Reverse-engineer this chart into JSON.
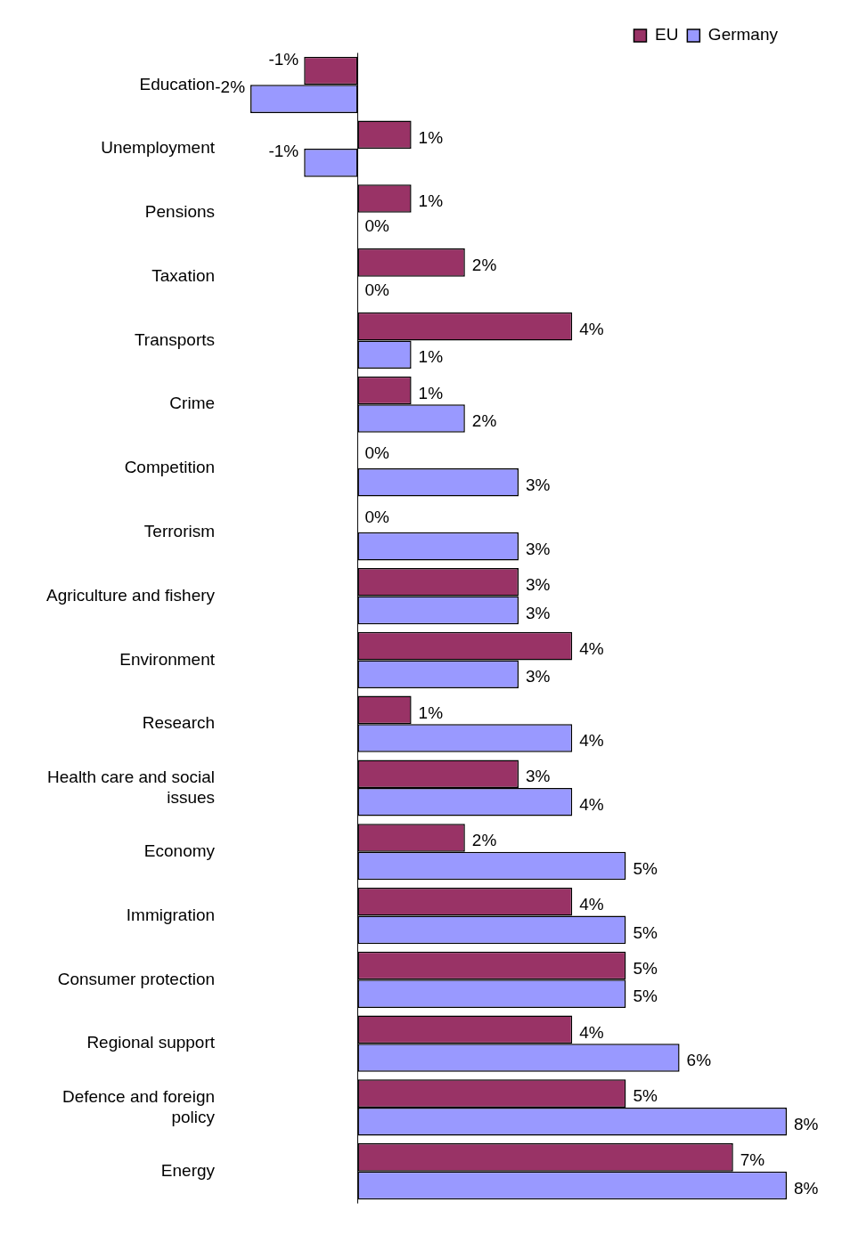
{
  "chart_data": {
    "type": "bar",
    "orientation": "horizontal",
    "categories": [
      "Education",
      "Unemployment",
      "Pensions",
      "Taxation",
      "Transports",
      "Crime",
      "Competition",
      "Terrorism",
      "Agriculture and fishery",
      "Environment",
      "Research",
      "Health care and social issues",
      "Economy",
      "Immigration",
      "Consumer protection",
      "Regional support",
      "Defence and foreign policy",
      "Energy"
    ],
    "series": [
      {
        "name": "EU",
        "color": "#993366",
        "values": [
          -1,
          1,
          1,
          2,
          4,
          1,
          0,
          0,
          3,
          4,
          1,
          3,
          2,
          4,
          5,
          4,
          5,
          7
        ],
        "value_labels": [
          "-1%",
          "1%",
          "1%",
          "2%",
          "4%",
          "1%",
          "0%",
          "0%",
          "3%",
          "4%",
          "1%",
          "3%",
          "2%",
          "4%",
          "5%",
          "4%",
          "5%",
          "7%"
        ]
      },
      {
        "name": "Germany",
        "color": "#9999ff",
        "values": [
          -2,
          -1,
          0,
          0,
          1,
          2,
          3,
          3,
          3,
          3,
          4,
          4,
          5,
          5,
          5,
          6,
          8,
          8
        ],
        "value_labels": [
          "-2%",
          "-1%",
          "0%",
          "0%",
          "1%",
          "2%",
          "3%",
          "3%",
          "3%",
          "3%",
          "4%",
          "4%",
          "5%",
          "5%",
          "5%",
          "6%",
          "8%",
          "8%"
        ]
      }
    ],
    "xlim": [
      -2,
      8
    ],
    "tick_labels": "y",
    "grid": false,
    "legend": "top right"
  }
}
